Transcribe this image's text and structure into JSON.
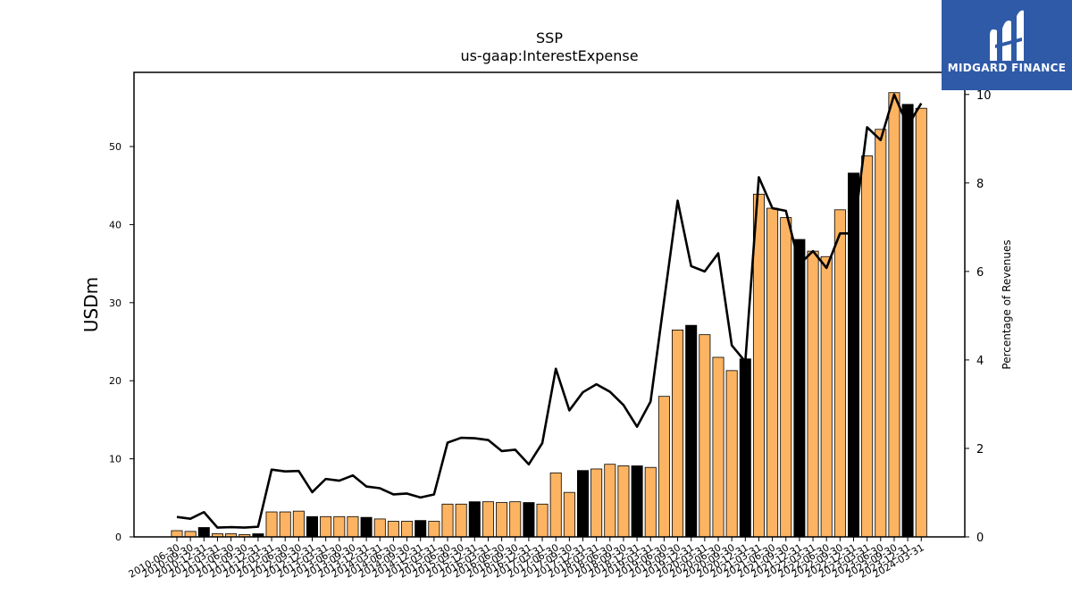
{
  "logo": {
    "text": "MIDGARD FINANCE",
    "background": "#2f5aa8"
  },
  "chart_data": {
    "type": "bar",
    "title": "SSP",
    "subtitle": "us-gaap:InterestExpense",
    "ylabel": "USDm",
    "ylabel_right": "Percentage of Revenues",
    "ylim": [
      0,
      59.5
    ],
    "ylim_right": [
      0,
      10.5
    ],
    "yticks": [
      0,
      10,
      20,
      30,
      40,
      50
    ],
    "yticks_right": [
      0,
      2,
      4,
      6,
      8,
      10
    ],
    "colors": {
      "quarter": "#fdb462",
      "year_end": "#000000",
      "line": "#000000"
    },
    "categories": [
      "2010-06-30",
      "2010-09-30",
      "2010-12-31",
      "2011-03-31",
      "2011-06-30",
      "2011-09-30",
      "2011-12-31",
      "2012-03-31",
      "2012-06-30",
      "2012-09-30",
      "2012-12-31",
      "2013-03-31",
      "2013-06-30",
      "2013-09-30",
      "2013-12-31",
      "2014-03-31",
      "2014-06-30",
      "2014-09-30",
      "2014-12-31",
      "2015-03-31",
      "2015-06-30",
      "2015-09-30",
      "2015-12-31",
      "2016-03-31",
      "2016-06-30",
      "2016-09-30",
      "2016-12-31",
      "2017-03-31",
      "2017-06-30",
      "2017-09-30",
      "2017-12-31",
      "2018-03-31",
      "2018-06-30",
      "2018-09-30",
      "2018-12-31",
      "2019-03-31",
      "2019-06-30",
      "2019-09-30",
      "2019-12-31",
      "2020-03-31",
      "2020-06-30",
      "2020-09-30",
      "2020-12-31",
      "2021-03-31",
      "2021-06-30",
      "2021-09-30",
      "2021-12-31",
      "2022-03-31",
      "2022-06-30",
      "2022-09-30",
      "2022-12-31",
      "2023-03-31",
      "2023-06-30",
      "2023-09-30",
      "2023-12-31",
      "2024-03-31"
    ],
    "xtick_labels": [
      "2010-06-30",
      "2010-09-30",
      "2010-12-31",
      "2011-03-31",
      "2011-06-30",
      "2011-09-30",
      "2011-12-31",
      "2012-03-31",
      "2012-06-30",
      "2012-09-30",
      "2012-12-31",
      "2013-03-31",
      "2013-06-30",
      "2013-09-30",
      "2013-12-31",
      "2014-03-31",
      "2014-06-30",
      "2014-09-30",
      "2014-12-31",
      "2015-03-31",
      "2015-06-30",
      "2015-09-30",
      "2015-12-31",
      "2016-03-31",
      "2016-06-30",
      "2016-09-30",
      "2016-12-31",
      "2017-03-31",
      "2017-06-30",
      "2017-09-30",
      "2017-12-31",
      "2018-03-31",
      "2018-06-30",
      "2018-09-30",
      "2018-12-31",
      "2019-03-31",
      "2019-06-30",
      "2019-09-30",
      "2019-12-31",
      "2020-03-31",
      "2020-06-30",
      "2020-09-30",
      "2020-12-31",
      "2021-03-31",
      "2021-06-30",
      "2021-09-30",
      "2021-12-31",
      "2022-03-31",
      "2022-06-30",
      "2022-09-30",
      "2022-12-31",
      "2023-03-31",
      "2023-06-30",
      "2023-09-30",
      "2023-12-31",
      "2024-03-31"
    ],
    "bar_values": [
      0.8,
      0.7,
      1.2,
      0.4,
      0.4,
      0.3,
      0.4,
      3.2,
      3.2,
      3.3,
      2.6,
      2.6,
      2.6,
      2.6,
      2.5,
      2.3,
      2.0,
      2.0,
      2.1,
      2.0,
      4.2,
      4.2,
      4.5,
      4.5,
      4.4,
      4.5,
      4.4,
      4.2,
      8.2,
      5.7,
      8.5,
      8.7,
      9.3,
      9.1,
      9.1,
      8.9,
      18.0,
      26.5,
      27.1,
      25.9,
      23.0,
      21.3,
      22.8,
      43.9,
      42.1,
      40.9,
      38.1,
      36.6,
      35.9,
      41.9,
      46.6,
      48.8,
      52.2,
      56.9,
      55.4,
      54.9
    ],
    "year_end": [
      false,
      false,
      true,
      false,
      false,
      false,
      true,
      false,
      false,
      false,
      true,
      false,
      false,
      false,
      true,
      false,
      false,
      false,
      true,
      false,
      false,
      false,
      true,
      false,
      false,
      false,
      true,
      false,
      false,
      false,
      true,
      false,
      false,
      false,
      true,
      false,
      false,
      false,
      true,
      false,
      false,
      false,
      true,
      false,
      false,
      false,
      true,
      false,
      false,
      false,
      true,
      false,
      false,
      false,
      true,
      false
    ],
    "series": [
      {
        "values": [
          0.8,
          0.7,
          1.2,
          0.4,
          0.4,
          0.3,
          0.4,
          3.2,
          3.2,
          3.3,
          2.6,
          2.6,
          2.6,
          2.6,
          2.5,
          2.3,
          2.0,
          2.0,
          2.1,
          2.0,
          4.2,
          4.2,
          4.5,
          4.5,
          4.4,
          4.5,
          4.4,
          4.2,
          8.2,
          5.7,
          8.5,
          8.7,
          9.3,
          9.1,
          9.1,
          8.9,
          18.0,
          26.5,
          27.1,
          25.9,
          23.0,
          21.3,
          22.8,
          43.9,
          42.1,
          40.9,
          38.1,
          36.6,
          35.9,
          41.9,
          46.6,
          48.8,
          52.2,
          56.9,
          55.4,
          54.9
        ],
        "axis": "left",
        "type": "bar"
      },
      {
        "values": [
          0.45,
          0.41,
          0.56,
          0.21,
          0.22,
          0.21,
          0.23,
          1.52,
          1.48,
          1.49,
          1.01,
          1.31,
          1.27,
          1.39,
          1.14,
          1.1,
          0.96,
          0.98,
          0.89,
          0.96,
          2.13,
          2.24,
          2.23,
          2.19,
          1.94,
          1.97,
          1.64,
          2.12,
          3.8,
          2.86,
          3.27,
          3.45,
          3.28,
          2.98,
          2.49,
          3.06,
          5.34,
          7.6,
          6.12,
          6.0,
          6.41,
          4.33,
          3.96,
          8.13,
          7.43,
          7.37,
          6.16,
          6.46,
          6.08,
          6.86,
          6.86,
          9.26,
          8.97,
          10.0,
          9.29,
          9.8
        ],
        "axis": "right",
        "type": "line"
      }
    ]
  }
}
